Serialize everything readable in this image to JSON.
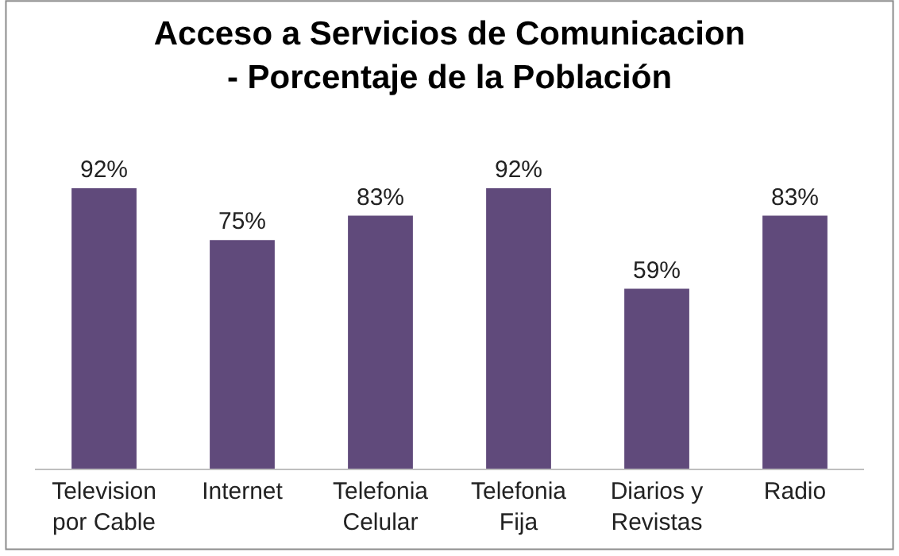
{
  "chart_data": {
    "type": "bar",
    "title": "Acceso a Servicios de Comunicacion\n- Porcentaje de la Población",
    "categories": [
      "Television\npor Cable",
      "Internet",
      "Telefonia\nCelular",
      "Telefonia\nFija",
      "Diarios y\nRevistas",
      "Radio"
    ],
    "values": [
      92,
      75,
      83,
      92,
      59,
      83
    ],
    "value_labels": [
      "92%",
      "75%",
      "83%",
      "92%",
      "59%",
      "83%"
    ],
    "color": "#604a7b",
    "legend": false
  }
}
